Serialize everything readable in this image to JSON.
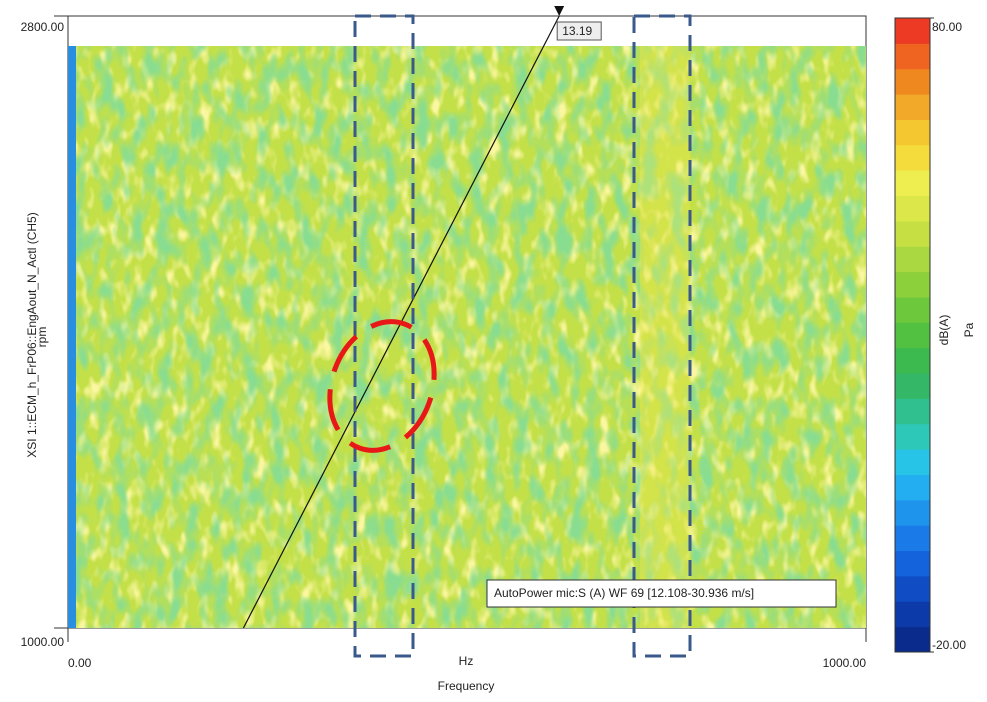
{
  "chart_data": {
    "type": "colormap",
    "x_label": "Frequency",
    "x_unit": "Hz",
    "y_label": "XSI 1::ECM_h_FrP06::EngAout_N_Actl (CH5)",
    "y_unit": "rpm",
    "xlim": [
      0,
      1000
    ],
    "xticks": [
      {
        "value": 0,
        "label": "0.00"
      },
      {
        "value": 1000,
        "label": "1000.00"
      }
    ],
    "ylim": [
      1000,
      2800
    ],
    "yticks": [
      {
        "value": 1000,
        "label": "1000.00"
      },
      {
        "value": 2800,
        "label": "2800.00"
      }
    ],
    "order_line": 13.19,
    "legend": "AutoPower mic:S (A) WF 69 [12.108-30.936 m/s]",
    "colorbar": {
      "lim": [
        -20,
        80
      ],
      "ticks": [
        {
          "value": -20,
          "label": "-20.00"
        },
        {
          "value": 80,
          "label": "80.00"
        }
      ],
      "label": "dB(A)",
      "unit": "Pa",
      "colors": [
        "#0a2a8c",
        "#0c3aa8",
        "#104cc4",
        "#1462dc",
        "#1a7ae8",
        "#1e94ec",
        "#22aef0",
        "#28c4e8",
        "#2ec8b8",
        "#30c090",
        "#34b868",
        "#3cba50",
        "#52c040",
        "#6ec83c",
        "#8cd03c",
        "#aad840",
        "#c6e044",
        "#dce84a",
        "#eeee50",
        "#f4dc3c",
        "#f4c630",
        "#f2a828",
        "#f08820",
        "#ee6420",
        "#ec3a24"
      ]
    }
  }
}
